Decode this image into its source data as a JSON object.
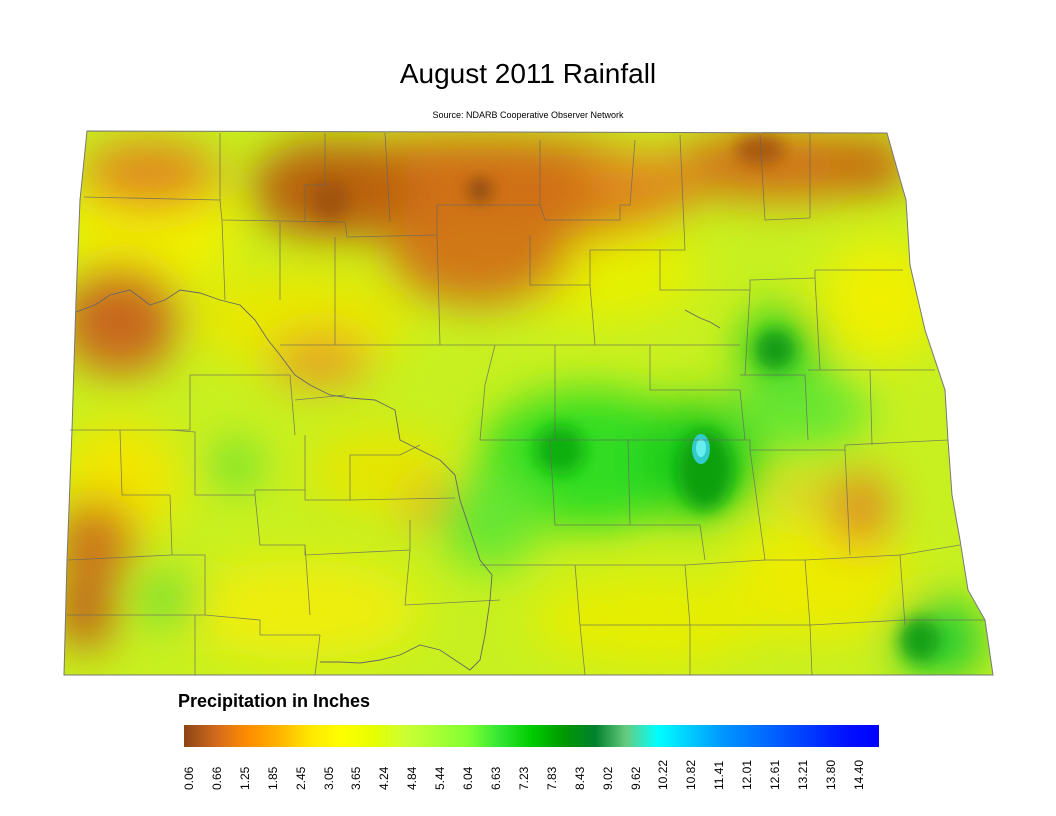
{
  "title": "August 2011 Rainfall",
  "subtitle": "Source: NDARB Cooperative Observer Network",
  "legend": {
    "title": "Precipitation in Inches",
    "ticks": [
      "0.06",
      "0.66",
      "1.25",
      "1.85",
      "2.45",
      "3.05",
      "3.65",
      "4.24",
      "4.84",
      "5.44",
      "6.04",
      "6.63",
      "7.23",
      "7.83",
      "8.43",
      "9.02",
      "9.62",
      "10.22",
      "10.82",
      "11.41",
      "12.01",
      "12.61",
      "13.21",
      "13.80",
      "14.40"
    ],
    "colors": [
      "#8b4513",
      "#d2691e",
      "#ff8c00",
      "#ffb300",
      "#ffe800",
      "#ffff00",
      "#e6ff00",
      "#ccff33",
      "#a8ff33",
      "#80ff33",
      "#33e633",
      "#00cc00",
      "#009900",
      "#00802b",
      "#66cc80",
      "#00ffff",
      "#00ccff",
      "#0099ff",
      "#0077ff",
      "#0055ff",
      "#0033ff",
      "#0011ff",
      "#0000ff"
    ]
  },
  "map": {
    "region": "North Dakota",
    "base_color": "#c8f020",
    "dry_color": "#c8681a",
    "wet_color": "#0fb80f",
    "peak_color": "#33cccc"
  }
}
